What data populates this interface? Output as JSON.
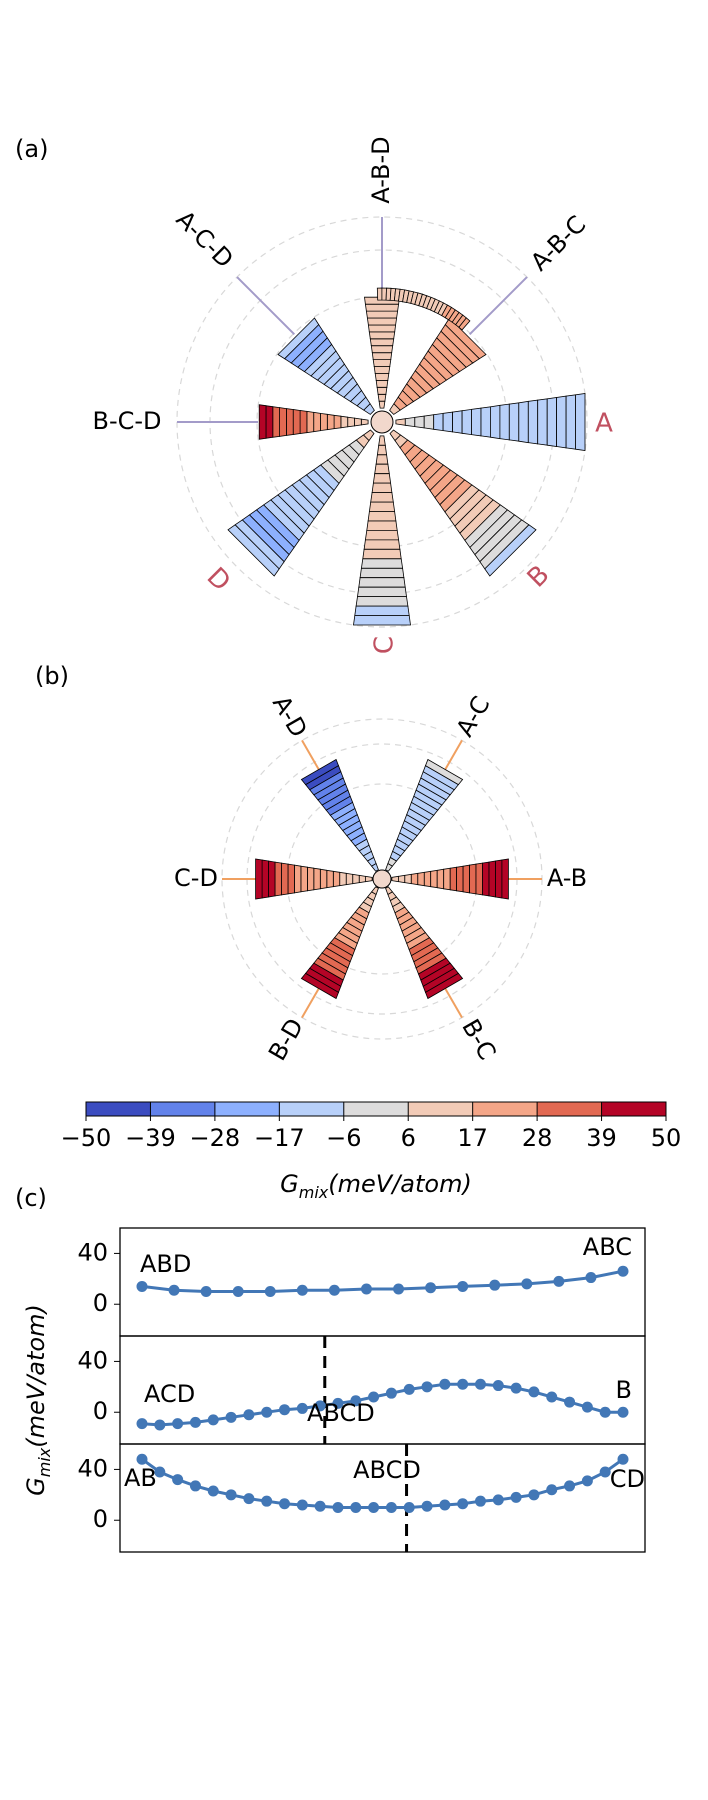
{
  "panel_labels": {
    "a": "(a)",
    "b": "(b)",
    "c": "(c)"
  },
  "colors": {
    "colorbar": [
      "#3b4cc0",
      "#6282ea",
      "#8db0fe",
      "#b8d0f9",
      "#dddcdc",
      "#f2cbb7",
      "#f4a688",
      "#e26952",
      "#b40426"
    ],
    "line": "#4277b6",
    "spoke_a": "#a39bc9",
    "spoke_b": "#f0a060",
    "grid": "#d8d8d8",
    "element_label": "#c05060"
  },
  "chart_data": [
    {
      "type": "radial-bar",
      "panel": "(a)",
      "element_labels": [
        "A",
        "B",
        "C",
        "D"
      ],
      "ternary_labels": [
        "A-B-C",
        "A-B-D",
        "A-C-D",
        "B-C-D"
      ],
      "description_values": "Each wedge shows Gmix (meV/atom) along a composition path from the center outwards",
      "wedges": [
        {
          "direction": "A",
          "values": [
            6,
            5,
            -2,
            -4,
            -6,
            -8,
            -10,
            -11,
            -12,
            -13,
            -13,
            -13,
            -14,
            -14,
            -14,
            -13,
            -12,
            -10,
            -8,
            -6
          ]
        },
        {
          "direction": "B",
          "values": [
            8,
            14,
            17,
            20,
            22,
            23,
            24,
            24,
            23,
            21,
            19,
            16,
            13,
            10,
            7,
            4,
            1,
            -2,
            -5,
            -6
          ]
        },
        {
          "direction": "C",
          "values": [
            6,
            7,
            8,
            9,
            10,
            11,
            12,
            12,
            11,
            10,
            9,
            8,
            6,
            4,
            2,
            0,
            -2,
            -4,
            -6,
            -6
          ]
        },
        {
          "direction": "D",
          "values": [
            10,
            7,
            4,
            2,
            0,
            -2,
            -4,
            -6,
            -8,
            -9,
            -10,
            -11,
            -12,
            -13,
            -15,
            -17,
            -19,
            -18,
            -14,
            -10
          ]
        },
        {
          "direction": "B-C-D",
          "values": [
            9,
            11,
            13,
            15,
            17,
            19,
            21,
            23,
            25,
            28,
            31,
            34,
            36,
            38,
            41,
            44
          ]
        },
        {
          "direction": "A-C-D",
          "values": [
            -8,
            -9,
            -10,
            -11,
            -12,
            -13,
            -14,
            -15,
            -16,
            -16,
            -17,
            -17,
            -17,
            -16
          ]
        },
        {
          "direction": "A-B-D",
          "values": [
            12,
            11,
            10,
            10,
            10,
            10,
            11,
            11,
            12,
            12,
            13,
            13,
            14,
            14,
            15,
            15
          ]
        },
        {
          "direction": "A-B-C",
          "values": [
            15,
            17,
            19,
            21,
            23,
            24,
            25,
            26,
            26,
            27,
            27,
            27,
            27,
            26
          ]
        }
      ],
      "arc_values": [
        12,
        11,
        10,
        10,
        10,
        10,
        11,
        11,
        12,
        12,
        13,
        13,
        14,
        14,
        15,
        16,
        17,
        18,
        20,
        22,
        24,
        26
      ]
    },
    {
      "type": "radial-bar",
      "panel": "(b)",
      "binary_labels": [
        "A-B",
        "A-C",
        "A-D",
        "C-D",
        "B-D",
        "B-C"
      ],
      "wedges": [
        {
          "direction": "A-B",
          "values": [
            10,
            13,
            15,
            17,
            19,
            21,
            23,
            25,
            27,
            29,
            31,
            33,
            35,
            38,
            41,
            44,
            47,
            49
          ]
        },
        {
          "direction": "A-C",
          "values": [
            -3,
            -5,
            -6,
            -7,
            -8,
            -9,
            -10,
            -11,
            -12,
            -13,
            -13,
            -14,
            -15,
            -15,
            -14,
            -12,
            -9,
            -5
          ]
        },
        {
          "direction": "A-D",
          "values": [
            -6,
            -9,
            -12,
            -14,
            -16,
            -18,
            -19,
            -20,
            -22,
            -24,
            -26,
            -28,
            -30,
            -33,
            -36,
            -38,
            -40,
            -41
          ]
        },
        {
          "direction": "C-D",
          "values": [
            8,
            10,
            12,
            14,
            16,
            18,
            19,
            20,
            21,
            23,
            25,
            27,
            29,
            32,
            36,
            41,
            45,
            47
          ]
        },
        {
          "direction": "B-D",
          "values": [
            10,
            12,
            14,
            16,
            18,
            20,
            22,
            23,
            24,
            26,
            28,
            30,
            32,
            35,
            38,
            42,
            45,
            47
          ]
        },
        {
          "direction": "B-C",
          "values": [
            8,
            11,
            13,
            15,
            17,
            19,
            21,
            23,
            25,
            27,
            29,
            31,
            33,
            36,
            39,
            42,
            45,
            47
          ]
        }
      ]
    },
    {
      "type": "colorbar",
      "ticks": [
        "−50",
        "−39",
        "−28",
        "−17",
        "−6",
        "6",
        "17",
        "28",
        "39",
        "50"
      ],
      "label_main": "G",
      "label_sub": "mix",
      "label_rest": "(meV/atom)",
      "range": [
        -50,
        50
      ]
    },
    {
      "type": "line",
      "panel": "(c)",
      "ylabel_main": "G",
      "ylabel_sub": "mix",
      "ylabel_rest": "(meV/atom)",
      "ylim": [
        -25,
        60
      ],
      "yticks": [
        "40",
        "0"
      ],
      "rows": [
        {
          "left_label": "ABD",
          "right_label": "ABC",
          "values": [
            14,
            11,
            10,
            10,
            10,
            11,
            11,
            12,
            12,
            13,
            14,
            15,
            16,
            18,
            21,
            26
          ]
        },
        {
          "left_label": "ACD",
          "right_label": "B",
          "mid_label": "ABCD",
          "values": [
            -9,
            -10,
            -9,
            -8,
            -6,
            -4,
            -2,
            0,
            2,
            3,
            5,
            7,
            9,
            12,
            15,
            18,
            20,
            22,
            22,
            22,
            21,
            19,
            16,
            12,
            8,
            4,
            0,
            0
          ]
        },
        {
          "left_label": "AB",
          "right_label": "CD",
          "mid_label": "ABCD",
          "values": [
            48,
            38,
            32,
            27,
            23,
            20,
            17,
            15,
            13,
            12,
            11,
            10,
            10,
            10,
            10,
            10,
            11,
            12,
            13,
            15,
            16,
            18,
            20,
            24,
            27,
            31,
            38,
            48
          ]
        }
      ]
    }
  ]
}
